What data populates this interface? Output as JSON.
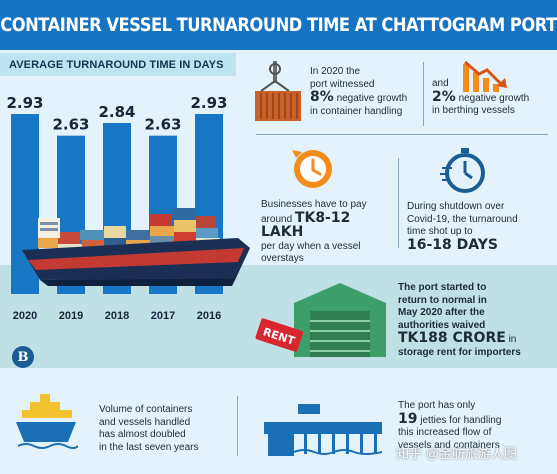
{
  "header": {
    "title": "CONTAINER VESSEL TURNAROUND TIME AT CHATTOGRAM PORT"
  },
  "chart_data": {
    "type": "bar",
    "title": "AVERAGE TURNAROUND TIME IN DAYS",
    "categories": [
      "2020",
      "2019",
      "2018",
      "2017",
      "2016"
    ],
    "values": [
      2.93,
      2.63,
      2.84,
      2.63,
      2.93
    ],
    "data_labels": [
      "2.93",
      "2.63",
      "2.84",
      "2.63",
      "2.93"
    ],
    "bar_color": "#1777c5",
    "grid": false,
    "legend": "none"
  },
  "stats": {
    "container_handling": {
      "line1": "In 2020 the",
      "line2": "port witnessed",
      "value": "8%",
      "line3": "negative growth",
      "line4": "in container handling"
    },
    "berthing": {
      "prefix": "and",
      "value": "2%",
      "line1": "negative growth",
      "line2": "in berthing vessels"
    },
    "business_cost": {
      "line1": "Businesses have to pay",
      "line2a": "around",
      "value": "TK8-12 LAKH",
      "line3": "per day when a vessel",
      "line4": "overstays"
    },
    "shutdown": {
      "line1": "During shutdown over",
      "line2": "Covid-19, the turnaround",
      "line3": "time shot up to",
      "value": "16-18 DAYS"
    },
    "storage_rent": {
      "line1": "The port started to",
      "line2": "return to normal in",
      "line3": "May 2020 after the",
      "line4": "authorities waived",
      "value": "TK188 CRORE",
      "line5a": "in",
      "line5": "storage rent for importers"
    },
    "volume": {
      "line1": "Volume of containers",
      "line2": "and vessels handled",
      "line3": "has almost doubled",
      "line4": "in the last seven years"
    },
    "jetties": {
      "line1": "The port has only",
      "value": "19",
      "line2": "jetties for handling",
      "line3": "this increased flow of",
      "line4": "vessels and containers"
    }
  },
  "icons": {
    "container_crane": "container-crane-icon",
    "decline_chart": "decline-chart-icon",
    "clock": "clock-icon",
    "stopwatch": "stopwatch-icon",
    "warehouse": "warehouse-icon",
    "rent_tag": "rent-tag-icon",
    "container_ship": "container-ship-icon",
    "jetty": "jetty-icon",
    "logo": "the-daily-star-logo"
  },
  "rent_tag_text": "RENT",
  "logo_letter": "B",
  "watermark": "知乎 @金舫旅游人图",
  "colors": {
    "header_bg": "#1573c2",
    "page_bg": "#e4f3fb",
    "band_bg": "#bfe1e6",
    "accent_orange": "#f28c1b",
    "red": "#d7262f",
    "ship_hull": "#1b2f55"
  }
}
